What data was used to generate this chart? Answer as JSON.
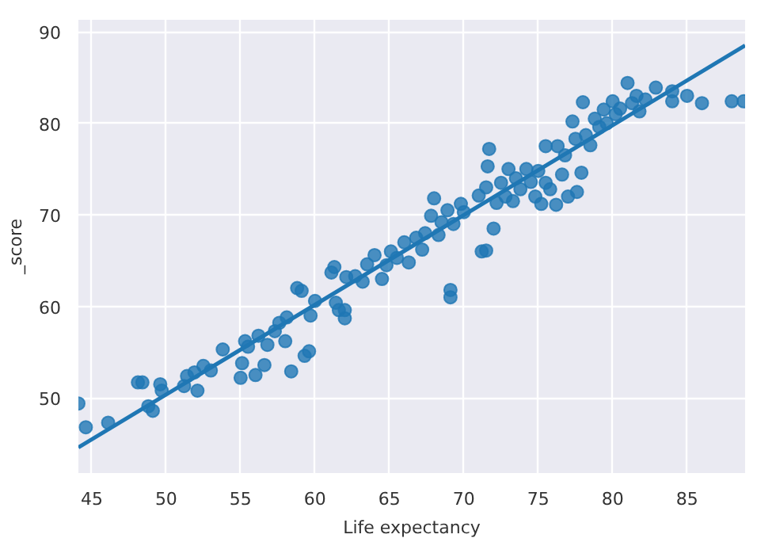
{
  "chart_data": {
    "type": "scatter",
    "xlabel": "Life expectancy",
    "ylabel": "_score",
    "xlim": [
      44.1,
      88.9
    ],
    "ylim": [
      41.8,
      91.3
    ],
    "xticks": [
      45,
      50,
      55,
      60,
      65,
      70,
      75,
      80,
      85
    ],
    "yticks": [
      50,
      60,
      70,
      80,
      90
    ],
    "grid": true,
    "series": [
      {
        "color": "#1f77b4",
        "marker": "circle",
        "x": [
          44.1,
          44.6,
          46.1,
          48.1,
          48.4,
          48.8,
          49.1,
          49.6,
          49.7,
          51.2,
          51.4,
          51.9,
          52.1,
          52.5,
          53.0,
          53.8,
          55.0,
          55.1,
          55.3,
          55.5,
          56.0,
          56.2,
          56.6,
          56.8,
          57.3,
          57.6,
          58.0,
          58.4,
          58.1,
          58.8,
          59.1,
          59.3,
          59.6,
          59.7,
          60.0,
          61.1,
          61.3,
          61.4,
          61.6,
          62.0,
          62.0,
          62.1,
          62.7,
          63.2,
          63.5,
          64.0,
          64.5,
          64.8,
          65.1,
          65.5,
          66.0,
          66.3,
          66.8,
          67.2,
          67.4,
          67.8,
          68.0,
          68.3,
          68.5,
          68.9,
          69.1,
          69.1,
          69.3,
          69.8,
          70.0,
          71.2,
          71.5,
          71.0,
          71.5,
          71.7,
          71.6,
          72.0,
          72.2,
          72.5,
          72.8,
          73.0,
          73.3,
          73.5,
          73.8,
          74.2,
          74.5,
          74.8,
          75.0,
          75.2,
          75.5,
          75.5,
          75.8,
          76.2,
          76.3,
          76.6,
          76.8,
          77.0,
          77.3,
          77.5,
          77.6,
          77.9,
          78.0,
          78.2,
          78.5,
          78.8,
          79.1,
          79.4,
          79.6,
          80.0,
          80.2,
          80.5,
          81.0,
          81.3,
          81.6,
          81.8,
          82.2,
          82.9,
          84.0,
          84.0,
          85.0,
          86.0,
          88.0,
          88.8
        ],
        "values": [
          49.4,
          46.8,
          47.3,
          51.7,
          51.7,
          49.1,
          48.6,
          51.5,
          50.8,
          51.3,
          52.4,
          52.8,
          50.8,
          53.5,
          53.0,
          55.3,
          52.2,
          53.8,
          56.2,
          55.6,
          52.5,
          56.8,
          53.6,
          55.8,
          57.3,
          58.2,
          56.2,
          52.9,
          58.8,
          62.0,
          61.7,
          54.6,
          55.1,
          59.0,
          60.6,
          63.7,
          64.3,
          60.4,
          59.6,
          59.6,
          58.7,
          63.2,
          63.3,
          62.7,
          64.6,
          65.6,
          63.0,
          64.5,
          66.0,
          65.3,
          67.0,
          64.8,
          67.5,
          66.2,
          68.0,
          69.9,
          71.8,
          67.8,
          69.2,
          70.5,
          61.8,
          61.0,
          69.0,
          71.2,
          70.3,
          66.0,
          66.1,
          72.1,
          73.0,
          77.2,
          75.3,
          68.5,
          71.3,
          73.5,
          72.0,
          75.0,
          71.5,
          74.0,
          72.8,
          75.0,
          73.6,
          72.0,
          74.8,
          71.2,
          73.5,
          77.5,
          72.8,
          71.1,
          77.5,
          74.4,
          76.5,
          72.0,
          80.2,
          78.3,
          72.5,
          74.6,
          82.3,
          78.7,
          77.6,
          80.5,
          79.6,
          81.5,
          80.0,
          82.4,
          81.0,
          81.6,
          84.4,
          82.2,
          83.0,
          81.3,
          82.6,
          83.9,
          82.4,
          83.5,
          83.0,
          82.2,
          82.4,
          82.4
        ]
      },
      {
        "type": "line",
        "color": "#1f77b4",
        "x": [
          44.1,
          88.9
        ],
        "values": [
          44.6,
          88.5
        ]
      }
    ]
  }
}
